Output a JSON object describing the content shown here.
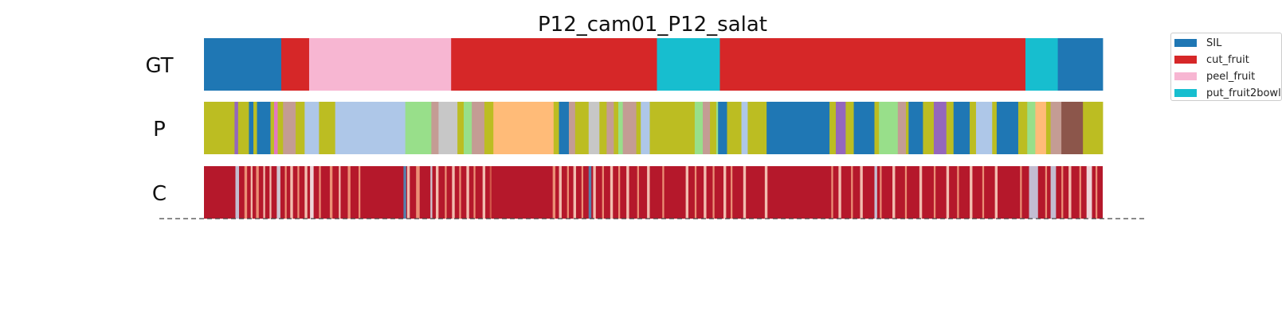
{
  "chart_data": {
    "type": "segmentation-timeline",
    "title": "P12_cam01_P12_salat",
    "rows": [
      {
        "label": "GT",
        "segments": [
          {
            "start": 0,
            "end": 0.086,
            "color": "#1f77b4"
          },
          {
            "start": 0.086,
            "end": 0.117,
            "color": "#d62728"
          },
          {
            "start": 0.117,
            "end": 0.275,
            "color": "#f7b6d2"
          },
          {
            "start": 0.275,
            "end": 0.504,
            "color": "#d62728"
          },
          {
            "start": 0.504,
            "end": 0.574,
            "color": "#17becf"
          },
          {
            "start": 0.574,
            "end": 0.914,
            "color": "#d62728"
          },
          {
            "start": 0.914,
            "end": 0.95,
            "color": "#17becf"
          },
          {
            "start": 0.95,
            "end": 1.0,
            "color": "#1f77b4"
          }
        ]
      },
      {
        "label": "P",
        "segments": [
          {
            "start": 0,
            "end": 0.034,
            "color": "#bcbd22"
          },
          {
            "start": 0.034,
            "end": 0.038,
            "color": "#9467bd"
          },
          {
            "start": 0.038,
            "end": 0.05,
            "color": "#bcbd22"
          },
          {
            "start": 0.05,
            "end": 0.055,
            "color": "#1f77b4"
          },
          {
            "start": 0.055,
            "end": 0.059,
            "color": "#bcbd22"
          },
          {
            "start": 0.059,
            "end": 0.074,
            "color": "#1f77b4"
          },
          {
            "start": 0.074,
            "end": 0.078,
            "color": "#bcbd22"
          },
          {
            "start": 0.078,
            "end": 0.082,
            "color": "#e377c2"
          },
          {
            "start": 0.082,
            "end": 0.088,
            "color": "#bcbd22"
          },
          {
            "start": 0.088,
            "end": 0.102,
            "color": "#c49c94"
          },
          {
            "start": 0.102,
            "end": 0.112,
            "color": "#bcbd22"
          },
          {
            "start": 0.112,
            "end": 0.128,
            "color": "#aec7e8"
          },
          {
            "start": 0.128,
            "end": 0.146,
            "color": "#bcbd22"
          },
          {
            "start": 0.146,
            "end": 0.224,
            "color": "#aec7e8"
          },
          {
            "start": 0.224,
            "end": 0.253,
            "color": "#98df8a"
          },
          {
            "start": 0.253,
            "end": 0.261,
            "color": "#c49c94"
          },
          {
            "start": 0.261,
            "end": 0.282,
            "color": "#c7c7c7"
          },
          {
            "start": 0.282,
            "end": 0.289,
            "color": "#bcbd22"
          },
          {
            "start": 0.289,
            "end": 0.298,
            "color": "#98df8a"
          },
          {
            "start": 0.298,
            "end": 0.312,
            "color": "#c49c94"
          },
          {
            "start": 0.312,
            "end": 0.322,
            "color": "#bcbd22"
          },
          {
            "start": 0.322,
            "end": 0.389,
            "color": "#ffbb78"
          },
          {
            "start": 0.389,
            "end": 0.395,
            "color": "#bcbd22"
          },
          {
            "start": 0.395,
            "end": 0.406,
            "color": "#1f77b4"
          },
          {
            "start": 0.406,
            "end": 0.413,
            "color": "#c49c94"
          },
          {
            "start": 0.413,
            "end": 0.428,
            "color": "#bcbd22"
          },
          {
            "start": 0.428,
            "end": 0.44,
            "color": "#c7c7c7"
          },
          {
            "start": 0.44,
            "end": 0.448,
            "color": "#bcbd22"
          },
          {
            "start": 0.448,
            "end": 0.456,
            "color": "#c49c94"
          },
          {
            "start": 0.456,
            "end": 0.461,
            "color": "#bcbd22"
          },
          {
            "start": 0.461,
            "end": 0.466,
            "color": "#98df8a"
          },
          {
            "start": 0.466,
            "end": 0.481,
            "color": "#c49c94"
          },
          {
            "start": 0.481,
            "end": 0.486,
            "color": "#bcbd22"
          },
          {
            "start": 0.486,
            "end": 0.486,
            "color": "#bcbd22"
          },
          {
            "start": 0.486,
            "end": 0.496,
            "color": "#aec7e8"
          },
          {
            "start": 0.496,
            "end": 0.546,
            "color": "#bcbd22"
          },
          {
            "start": 0.546,
            "end": 0.555,
            "color": "#98df8a"
          },
          {
            "start": 0.555,
            "end": 0.563,
            "color": "#c49c94"
          },
          {
            "start": 0.563,
            "end": 0.57,
            "color": "#bcbd22"
          },
          {
            "start": 0.57,
            "end": 0.572,
            "color": "#98df8a"
          },
          {
            "start": 0.572,
            "end": 0.582,
            "color": "#1f77b4"
          },
          {
            "start": 0.582,
            "end": 0.598,
            "color": "#bcbd22"
          },
          {
            "start": 0.598,
            "end": 0.605,
            "color": "#aec7e8"
          },
          {
            "start": 0.605,
            "end": 0.623,
            "color": "#bcbd22"
          },
          {
            "start": 0.623,
            "end": 0.623,
            "color": "#bcbd22"
          },
          {
            "start": 0.623,
            "end": 0.626,
            "color": "#bcbd22"
          },
          {
            "start": 0.626,
            "end": 0.696,
            "color": "#1f77b4"
          },
          {
            "start": 0.696,
            "end": 0.703,
            "color": "#bcbd22"
          },
          {
            "start": 0.703,
            "end": 0.714,
            "color": "#9467bd"
          },
          {
            "start": 0.714,
            "end": 0.723,
            "color": "#bcbd22"
          },
          {
            "start": 0.723,
            "end": 0.746,
            "color": "#1f77b4"
          },
          {
            "start": 0.746,
            "end": 0.751,
            "color": "#bcbd22"
          },
          {
            "start": 0.751,
            "end": 0.772,
            "color": "#98df8a"
          },
          {
            "start": 0.772,
            "end": 0.781,
            "color": "#c49c94"
          },
          {
            "start": 0.781,
            "end": 0.784,
            "color": "#bcbd22"
          },
          {
            "start": 0.784,
            "end": 0.8,
            "color": "#1f77b4"
          },
          {
            "start": 0.8,
            "end": 0.812,
            "color": "#bcbd22"
          },
          {
            "start": 0.812,
            "end": 0.826,
            "color": "#9467bd"
          },
          {
            "start": 0.826,
            "end": 0.834,
            "color": "#bcbd22"
          },
          {
            "start": 0.834,
            "end": 0.852,
            "color": "#1f77b4"
          },
          {
            "start": 0.852,
            "end": 0.859,
            "color": "#bcbd22"
          },
          {
            "start": 0.859,
            "end": 0.877,
            "color": "#aec7e8"
          },
          {
            "start": 0.877,
            "end": 0.882,
            "color": "#bcbd22"
          },
          {
            "start": 0.882,
            "end": 0.906,
            "color": "#1f77b4"
          },
          {
            "start": 0.906,
            "end": 0.916,
            "color": "#bcbd22"
          },
          {
            "start": 0.916,
            "end": 0.925,
            "color": "#98df8a"
          },
          {
            "start": 0.925,
            "end": 0.937,
            "color": "#ffbb78"
          },
          {
            "start": 0.937,
            "end": 0.942,
            "color": "#bcbd22"
          },
          {
            "start": 0.942,
            "end": 0.954,
            "color": "#c49c94"
          },
          {
            "start": 0.954,
            "end": 0.978,
            "color": "#8c564b"
          },
          {
            "start": 0.978,
            "end": 1.0,
            "color": "#bcbd22"
          }
        ]
      },
      {
        "label": "C",
        "base_color": "#b5182b",
        "stripes": [
          {
            "pos": 0.035,
            "w": 0.004,
            "color": "#c6dbef"
          },
          {
            "pos": 0.045,
            "w": 0.003,
            "color": "#f4a582"
          },
          {
            "pos": 0.052,
            "w": 0.002,
            "color": "#fddbc7"
          },
          {
            "pos": 0.058,
            "w": 0.003,
            "color": "#f4a582"
          },
          {
            "pos": 0.066,
            "w": 0.002,
            "color": "#fddbc7"
          },
          {
            "pos": 0.073,
            "w": 0.002,
            "color": "#fddbc7"
          },
          {
            "pos": 0.081,
            "w": 0.004,
            "color": "#d1e5f0"
          },
          {
            "pos": 0.09,
            "w": 0.002,
            "color": "#f4a582"
          },
          {
            "pos": 0.096,
            "w": 0.003,
            "color": "#fddbc7"
          },
          {
            "pos": 0.104,
            "w": 0.002,
            "color": "#f4a582"
          },
          {
            "pos": 0.112,
            "w": 0.003,
            "color": "#fddbc7"
          },
          {
            "pos": 0.118,
            "w": 0.004,
            "color": "#f7f7f7"
          },
          {
            "pos": 0.128,
            "w": 0.002,
            "color": "#f4a582"
          },
          {
            "pos": 0.14,
            "w": 0.003,
            "color": "#f4a582"
          },
          {
            "pos": 0.15,
            "w": 0.002,
            "color": "#fddbc7"
          },
          {
            "pos": 0.16,
            "w": 0.003,
            "color": "#f4a582"
          },
          {
            "pos": 0.172,
            "w": 0.002,
            "color": "#f4a582"
          },
          {
            "pos": 0.222,
            "w": 0.003,
            "color": "#4393c3"
          },
          {
            "pos": 0.226,
            "w": 0.003,
            "color": "#fddbc7"
          },
          {
            "pos": 0.236,
            "w": 0.004,
            "color": "#f4a582"
          },
          {
            "pos": 0.252,
            "w": 0.002,
            "color": "#d1e5f0"
          },
          {
            "pos": 0.258,
            "w": 0.003,
            "color": "#fddbc7"
          },
          {
            "pos": 0.268,
            "w": 0.002,
            "color": "#f4a582"
          },
          {
            "pos": 0.276,
            "w": 0.003,
            "color": "#fddbc7"
          },
          {
            "pos": 0.284,
            "w": 0.002,
            "color": "#f4a582"
          },
          {
            "pos": 0.292,
            "w": 0.003,
            "color": "#fddbc7"
          },
          {
            "pos": 0.3,
            "w": 0.002,
            "color": "#f4a582"
          },
          {
            "pos": 0.31,
            "w": 0.003,
            "color": "#fddbc7"
          },
          {
            "pos": 0.318,
            "w": 0.002,
            "color": "#d6604d"
          },
          {
            "pos": 0.388,
            "w": 0.003,
            "color": "#f4a582"
          },
          {
            "pos": 0.395,
            "w": 0.003,
            "color": "#fddbc7"
          },
          {
            "pos": 0.404,
            "w": 0.002,
            "color": "#f4a582"
          },
          {
            "pos": 0.411,
            "w": 0.003,
            "color": "#fddbc7"
          },
          {
            "pos": 0.42,
            "w": 0.002,
            "color": "#f4a582"
          },
          {
            "pos": 0.428,
            "w": 0.003,
            "color": "#4393c3"
          },
          {
            "pos": 0.433,
            "w": 0.003,
            "color": "#fddbc7"
          },
          {
            "pos": 0.443,
            "w": 0.002,
            "color": "#f4a582"
          },
          {
            "pos": 0.452,
            "w": 0.003,
            "color": "#fddbc7"
          },
          {
            "pos": 0.461,
            "w": 0.002,
            "color": "#f4a582"
          },
          {
            "pos": 0.47,
            "w": 0.003,
            "color": "#fddbc7"
          },
          {
            "pos": 0.482,
            "w": 0.002,
            "color": "#f4a582"
          },
          {
            "pos": 0.493,
            "w": 0.003,
            "color": "#fddbc7"
          },
          {
            "pos": 0.51,
            "w": 0.002,
            "color": "#f4a582"
          },
          {
            "pos": 0.536,
            "w": 0.003,
            "color": "#fddbc7"
          },
          {
            "pos": 0.546,
            "w": 0.002,
            "color": "#f4a582"
          },
          {
            "pos": 0.556,
            "w": 0.003,
            "color": "#fddbc7"
          },
          {
            "pos": 0.566,
            "w": 0.002,
            "color": "#f4a582"
          },
          {
            "pos": 0.578,
            "w": 0.003,
            "color": "#fddbc7"
          },
          {
            "pos": 0.586,
            "w": 0.002,
            "color": "#f4a582"
          },
          {
            "pos": 0.6,
            "w": 0.003,
            "color": "#fddbc7"
          },
          {
            "pos": 0.624,
            "w": 0.003,
            "color": "#fddbc7"
          },
          {
            "pos": 0.698,
            "w": 0.002,
            "color": "#f4a582"
          },
          {
            "pos": 0.706,
            "w": 0.003,
            "color": "#fddbc7"
          },
          {
            "pos": 0.72,
            "w": 0.002,
            "color": "#f4a582"
          },
          {
            "pos": 0.73,
            "w": 0.003,
            "color": "#fddbc7"
          },
          {
            "pos": 0.746,
            "w": 0.003,
            "color": "#c6dbef"
          },
          {
            "pos": 0.752,
            "w": 0.002,
            "color": "#f4a582"
          },
          {
            "pos": 0.766,
            "w": 0.003,
            "color": "#fddbc7"
          },
          {
            "pos": 0.78,
            "w": 0.002,
            "color": "#f4a582"
          },
          {
            "pos": 0.796,
            "w": 0.003,
            "color": "#fddbc7"
          },
          {
            "pos": 0.812,
            "w": 0.002,
            "color": "#f4a582"
          },
          {
            "pos": 0.826,
            "w": 0.003,
            "color": "#fddbc7"
          },
          {
            "pos": 0.838,
            "w": 0.002,
            "color": "#f4a582"
          },
          {
            "pos": 0.852,
            "w": 0.003,
            "color": "#fddbc7"
          },
          {
            "pos": 0.866,
            "w": 0.002,
            "color": "#f4a582"
          },
          {
            "pos": 0.88,
            "w": 0.003,
            "color": "#fddbc7"
          },
          {
            "pos": 0.908,
            "w": 0.002,
            "color": "#f4a582"
          },
          {
            "pos": 0.918,
            "w": 0.01,
            "color": "#c6dbef"
          },
          {
            "pos": 0.936,
            "w": 0.002,
            "color": "#f4a582"
          },
          {
            "pos": 0.942,
            "w": 0.006,
            "color": "#c6dbef"
          },
          {
            "pos": 0.954,
            "w": 0.002,
            "color": "#f4a582"
          },
          {
            "pos": 0.962,
            "w": 0.003,
            "color": "#fddbc7"
          },
          {
            "pos": 0.974,
            "w": 0.002,
            "color": "#f4a582"
          },
          {
            "pos": 0.982,
            "w": 0.006,
            "color": "#f7f7f7"
          },
          {
            "pos": 0.992,
            "w": 0.002,
            "color": "#f4a582"
          }
        ]
      }
    ],
    "legend": {
      "placement": "top-right",
      "items": [
        {
          "label": "SIL",
          "color": "#1f77b4"
        },
        {
          "label": "cut_fruit",
          "color": "#d62728"
        },
        {
          "label": "peel_fruit",
          "color": "#f7b6d2"
        },
        {
          "label": "put_fruit2bowl",
          "color": "#17becf"
        }
      ]
    }
  }
}
